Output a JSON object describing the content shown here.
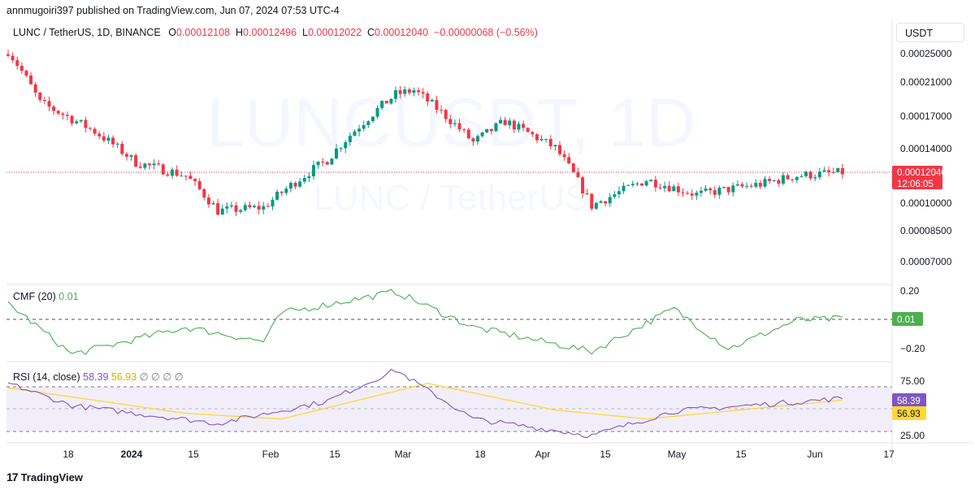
{
  "header": {
    "publisher_line": "annmugoiri397 published on TradingView.com, Jun 07, 2024 07:53 UTC-4"
  },
  "legend": {
    "symbol": "LUNC / TetherUS, 1D, BINANCE",
    "open_label": "O",
    "open": "0.00012108",
    "high_label": "H",
    "high": "0.00012496",
    "low_label": "L",
    "low": "0.00012022",
    "close_label": "C",
    "close": "0.00012040",
    "change": "−0.00000068 (−0.56%)"
  },
  "unit_button": "USDT",
  "watermark": {
    "big": "LUNCUSDT, 1D",
    "small": "LUNC / TetherUS"
  },
  "price_axis": {
    "ticks": [
      "0.00025000",
      "0.00021000",
      "0.00017000",
      "0.00014000",
      "0.00010000",
      "0.00008500",
      "0.00007000"
    ],
    "last_price_tag": "0.00012040",
    "countdown": "12:06:05"
  },
  "cmf": {
    "label": "CMF (20)",
    "value": "0.01",
    "ticks": [
      "0.20",
      "−0.20"
    ],
    "badge": "0.01"
  },
  "rsi": {
    "label": "RSI (14, close)",
    "value": "58.39",
    "ma_value": "56.93",
    "extra": "∅ ∅ ∅ ∅",
    "ticks": [
      "75.00",
      "25.00"
    ],
    "badge_rsi": "58.39",
    "badge_ma": "56.93"
  },
  "time_axis": [
    "18",
    "2024",
    "15",
    "Feb",
    "15",
    "Mar",
    "18",
    "Apr",
    "15",
    "May",
    "15",
    "Jun",
    "17"
  ],
  "footer": {
    "brand": "TradingView"
  },
  "colors": {
    "up": "#089981",
    "down": "#f23645",
    "cmf_line": "#4caf50",
    "rsi_line": "#7e57c2",
    "rsi_ma": "#fdd835",
    "band_fill": "#ede7f6"
  },
  "chart_data": [
    {
      "type": "candlestick",
      "title": "LUNC / TetherUS, 1D, BINANCE",
      "x_range": [
        "2023-12-07",
        "2024-06-17"
      ],
      "ylim": [
        6.5e-05,
        0.000265
      ],
      "scale": "log",
      "key_points": [
        {
          "date": "2023-12-07",
          "close": 0.000255
        },
        {
          "date": "2023-12-14",
          "close": 0.000185
        },
        {
          "date": "2023-12-26",
          "close": 0.000155
        },
        {
          "date": "2024-01-04",
          "close": 0.000128
        },
        {
          "date": "2024-01-15",
          "close": 0.000118
        },
        {
          "date": "2024-01-22",
          "close": 9.5e-05
        },
        {
          "date": "2024-02-01",
          "close": 9.7e-05
        },
        {
          "date": "2024-02-15",
          "close": 0.00013
        },
        {
          "date": "2024-03-01",
          "close": 0.000195
        },
        {
          "date": "2024-03-05",
          "close": 0.0002
        },
        {
          "date": "2024-03-18",
          "close": 0.000145
        },
        {
          "date": "2024-03-25",
          "close": 0.000165
        },
        {
          "date": "2024-04-05",
          "close": 0.00014
        },
        {
          "date": "2024-04-13",
          "close": 9.8e-05
        },
        {
          "date": "2024-04-25",
          "close": 0.000115
        },
        {
          "date": "2024-05-06",
          "close": 0.000105
        },
        {
          "date": "2024-05-20",
          "close": 0.000112
        },
        {
          "date": "2024-05-28",
          "close": 0.000118
        },
        {
          "date": "2024-06-07",
          "close": 0.0001204
        }
      ]
    },
    {
      "type": "line",
      "title": "CMF (20)",
      "ylim": [
        -0.28,
        0.24
      ],
      "key_points": [
        {
          "date": "2023-12-07",
          "y": 0.12
        },
        {
          "date": "2023-12-21",
          "y": -0.24
        },
        {
          "date": "2024-01-15",
          "y": -0.05
        },
        {
          "date": "2024-02-01",
          "y": -0.15
        },
        {
          "date": "2024-02-05",
          "y": 0.05
        },
        {
          "date": "2024-03-01",
          "y": 0.2
        },
        {
          "date": "2024-03-18",
          "y": -0.05
        },
        {
          "date": "2024-04-13",
          "y": -0.22
        },
        {
          "date": "2024-05-01",
          "y": 0.08
        },
        {
          "date": "2024-05-13",
          "y": -0.2
        },
        {
          "date": "2024-05-28",
          "y": 0.0
        },
        {
          "date": "2024-06-07",
          "y": 0.01
        }
      ]
    },
    {
      "type": "line",
      "title": "RSI (14, close)",
      "ylim": [
        20,
        90
      ],
      "series": [
        {
          "name": "RSI",
          "key_points": [
            {
              "date": "2023-12-07",
              "y": 72
            },
            {
              "date": "2023-12-21",
              "y": 52
            },
            {
              "date": "2024-01-22",
              "y": 36
            },
            {
              "date": "2024-02-15",
              "y": 56
            },
            {
              "date": "2024-03-01",
              "y": 84
            },
            {
              "date": "2024-03-18",
              "y": 40
            },
            {
              "date": "2024-04-13",
              "y": 25
            },
            {
              "date": "2024-05-01",
              "y": 47
            },
            {
              "date": "2024-06-07",
              "y": 58.39
            }
          ]
        },
        {
          "name": "MA",
          "key_points": [
            {
              "date": "2023-12-07",
              "y": 68
            },
            {
              "date": "2024-01-15",
              "y": 45
            },
            {
              "date": "2024-02-05",
              "y": 40
            },
            {
              "date": "2024-03-08",
              "y": 72
            },
            {
              "date": "2024-04-05",
              "y": 48
            },
            {
              "date": "2024-04-25",
              "y": 40
            },
            {
              "date": "2024-06-07",
              "y": 56.93
            }
          ]
        }
      ],
      "bands": [
        70,
        50,
        30
      ]
    }
  ]
}
